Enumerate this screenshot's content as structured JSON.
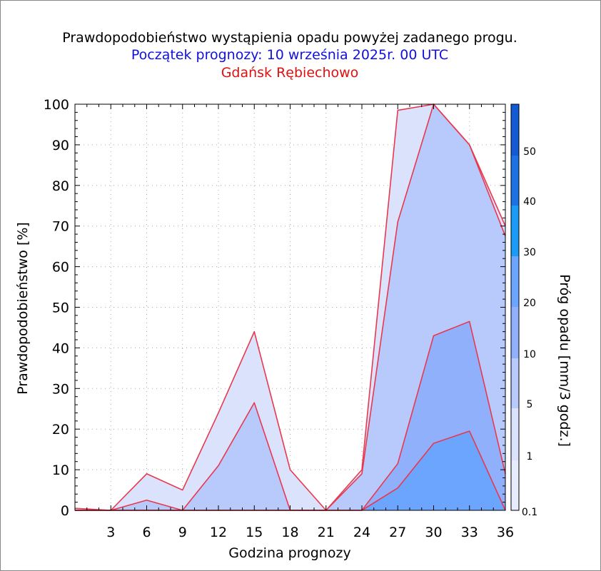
{
  "title": "Prawdopodobieństwo wystąpienia opadu powyżej zadanego progu.",
  "subtitle": "Początek prognozy: 10 września 2025r. 00 UTC",
  "location": "Gdańsk Rębiechowo",
  "colors": {
    "title": "#000000",
    "subtitle": "#1010e0",
    "location": "#e01010",
    "series_line": "#e8384e"
  },
  "chart_data": {
    "type": "area",
    "xlabel": "Godzina prognozy",
    "ylabel": "Prawdopodobieństwo [%]",
    "xlim": [
      0,
      36
    ],
    "ylim": [
      0,
      100
    ],
    "x_ticks": [
      3,
      6,
      9,
      12,
      15,
      18,
      21,
      24,
      27,
      30,
      33,
      36
    ],
    "y_ticks": [
      0,
      10,
      20,
      30,
      40,
      50,
      60,
      70,
      80,
      90,
      100
    ],
    "grid": true,
    "x": [
      0,
      3,
      6,
      9,
      12,
      15,
      18,
      21,
      24,
      27,
      30,
      33,
      36
    ],
    "series": [
      {
        "threshold": "0.1",
        "color": "#dbe2fc",
        "values": [
          0.5,
          0,
          9,
          5,
          24,
          44,
          10,
          0,
          10,
          98.5,
          100,
          90,
          70
        ]
      },
      {
        "threshold": "1",
        "color": "#b8cafb",
        "values": [
          0,
          0,
          2.5,
          0,
          11,
          26.5,
          0,
          0,
          9,
          71,
          100,
          90,
          67.5
        ]
      },
      {
        "threshold": "5",
        "color": "#90b0fb",
        "values": [
          0,
          0,
          0,
          0,
          0,
          0,
          0,
          0,
          0,
          11.5,
          43,
          46.5,
          9
        ]
      },
      {
        "threshold": "10",
        "color": "#6ca5fe",
        "values": [
          0,
          0,
          0,
          0,
          0,
          0,
          0,
          0,
          0,
          5.5,
          16.5,
          19.5,
          0
        ]
      }
    ],
    "colorbar": {
      "label": "Próg opadu [mm/3 godz.]",
      "ticks": [
        "0.1",
        "1",
        "5",
        "10",
        "20",
        "30",
        "40",
        "50"
      ],
      "colors": [
        "#e8edfe",
        "#dbe2fc",
        "#b8cafb",
        "#90b0fb",
        "#6ca5fe",
        "#1a9cf6",
        "#1c72e4",
        "#145ad4",
        "#0a3fb0"
      ]
    }
  }
}
